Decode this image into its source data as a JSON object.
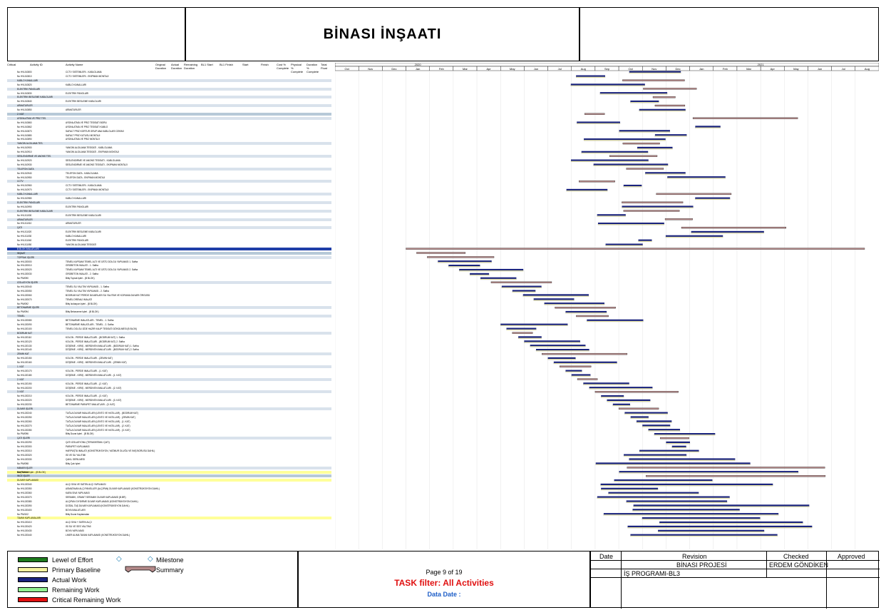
{
  "header": {
    "title": "BİNASI İNŞAATI"
  },
  "columns": {
    "col1": "Critical",
    "col2": "Activity ID",
    "col3": "Activity Name",
    "col4": "Original Duration",
    "col5": "Actual Duration",
    "col6": "Remaining Duration",
    "col7": "BL1 Start",
    "col8": "BL1 Finish",
    "col9": "Start",
    "col10": "Finish",
    "col11": "Cost % Complete",
    "col12": "Physical % Complete",
    "col13": "Duration % Complete",
    "col14": "Total Float"
  },
  "timeline": {
    "years": [
      "2020",
      "2021"
    ],
    "months": [
      "Oct",
      "Nov",
      "Dec",
      "Jan",
      "Feb",
      "Mar",
      "Apr",
      "May",
      "Jun",
      "Jul",
      "Aug",
      "Sep",
      "Oct",
      "Nov",
      "Dec",
      "Jan",
      "Feb",
      "Mar",
      "Apr",
      "May",
      "Jun",
      "Jul",
      "Aug"
    ]
  },
  "rows": [
    {
      "id": "No HVU10800",
      "name": "CCTV SISTEMLERI - KABLOLAMA",
      "kind": "task"
    },
    {
      "id": "No HVU10810",
      "name": "CCTV SISTEMLERI - EKIPMAN MONTAJI",
      "kind": "task"
    },
    {
      "id": "",
      "name": "KABLO KANALLARI",
      "kind": "g2"
    },
    {
      "id": "No HVU10820",
      "name": "KABLO KANALLARI",
      "kind": "task"
    },
    {
      "id": "",
      "name": "ELEKTRIK PANOLARI",
      "kind": "g2"
    },
    {
      "id": "No HVU10830",
      "name": "ELEKTRIK PANOLARI",
      "kind": "task"
    },
    {
      "id": "",
      "name": "ELEKTRIK BESLEME KABLOLARI",
      "kind": "g2"
    },
    {
      "id": "No HVU10840",
      "name": "ELEKTRIK BESLEME KABLOLARI",
      "kind": "task"
    },
    {
      "id": "",
      "name": "ARMATURLER",
      "kind": "g2"
    },
    {
      "id": "No HVU10850",
      "name": "ARMATURLER",
      "kind": "task"
    },
    {
      "id": "",
      "name": "2. KAT",
      "kind": "g1"
    },
    {
      "id": "",
      "name": "AYDINLATMA VE PRIZ TES.",
      "kind": "g2"
    },
    {
      "id": "No HVU10860",
      "name": "AYDINLATMA VE PRIZ TESISATI BORU",
      "kind": "task"
    },
    {
      "id": "No HVU10862",
      "name": "AYDINLATMA VE PRIZ TESISATI KABLO",
      "kind": "task"
    },
    {
      "id": "No HVU10870",
      "name": "SAFALT PRIZ KORTUR GRUP ANA KABLOLARI CEKIMI",
      "kind": "task"
    },
    {
      "id": "No HVU10880",
      "name": "SAFALT PRIZ KUTUSU MONTAJI",
      "kind": "task"
    },
    {
      "id": "No HVU10890",
      "name": "AYDINLATMA VE PRIZ MONTAJI",
      "kind": "task"
    },
    {
      "id": "",
      "name": "YANGIN ALGILAMA TES.",
      "kind": "g2"
    },
    {
      "id": "No HVU10900",
      "name": "YANGIN ALGILAMA TESISATI - KABLOLAMA",
      "kind": "task"
    },
    {
      "id": "No HVU10910",
      "name": "YANGIN ALGILAMA TESISATI - EKIPMAN MONTAJI",
      "kind": "task"
    },
    {
      "id": "",
      "name": "SESLENDIRME VE ANONS TES.",
      "kind": "g2"
    },
    {
      "id": "No HVU10920",
      "name": "SESLENDIRME VE ANONS TESISATI - KABLOLAMA",
      "kind": "task"
    },
    {
      "id": "No HVU10930",
      "name": "SESLENDIRME VE ANONS TESISATI - EKIPMAN MONTAJI",
      "kind": "task"
    },
    {
      "id": "",
      "name": "TELEFON DATA",
      "kind": "g2"
    },
    {
      "id": "No HVU10940",
      "name": "TELEFON DATA - KABLOLAMA",
      "kind": "task"
    },
    {
      "id": "No HVU10950",
      "name": "TELEFON DATA - EKIPMAN MONTAJI",
      "kind": "task"
    },
    {
      "id": "",
      "name": "CCTV",
      "kind": "g2"
    },
    {
      "id": "No HVU10960",
      "name": "CCTV SISTEMLERI - KABLOLAMA",
      "kind": "task"
    },
    {
      "id": "No HVU10970",
      "name": "CCTV SISTEMLERI - EKIPMAN MONTAJI",
      "kind": "task"
    },
    {
      "id": "",
      "name": "KABLO KANALLARI",
      "kind": "g2"
    },
    {
      "id": "No HVU10980",
      "name": "KABLO KANALLARI",
      "kind": "task"
    },
    {
      "id": "",
      "name": "ELEKTRIK PANOLARI",
      "kind": "g2"
    },
    {
      "id": "No HVU10990",
      "name": "ELEKTRIK PANOLARI",
      "kind": "task"
    },
    {
      "id": "",
      "name": "ELEKTRIK BESLEME KABLOLARI",
      "kind": "g2"
    },
    {
      "id": "No HVU11000",
      "name": "ELEKTRIK BESLEME KABLOLARI",
      "kind": "task"
    },
    {
      "id": "",
      "name": "ARMATURLER",
      "kind": "g2"
    },
    {
      "id": "No HVU11010",
      "name": "ARMATURLER",
      "kind": "task"
    },
    {
      "id": "",
      "name": "ÇATI",
      "kind": "g2"
    },
    {
      "id": "No HVU11020",
      "name": "ELEKTRIK BESLEME KABLOLARI",
      "kind": "task"
    },
    {
      "id": "No HVU11030",
      "name": "KABLO KANALLARI",
      "kind": "task"
    },
    {
      "id": "No HVU11040",
      "name": "ELEKTRIK PANOLARI",
      "kind": "task"
    },
    {
      "id": "No HVU11050",
      "name": "YANGIN ALGILAMA TESISATI",
      "kind": "task"
    },
    {
      "id": "",
      "name": "B BLOK İMALATLARI",
      "kind": "wbs"
    },
    {
      "id": "",
      "name": "İNŞAAT",
      "kind": "g1"
    },
    {
      "id": "",
      "name": "TOPRAK İŞLERİ",
      "kind": "g2"
    },
    {
      "id": "No HVU20000",
      "name": "TEMEL KAPSAMI TEMEL ALTI VE ÜSTÜ DOLGU YAPILMASI 1. Safha",
      "kind": "task"
    },
    {
      "id": "No HVU20010",
      "name": "GROBETON İMALATI - 1. Safha",
      "kind": "task"
    },
    {
      "id": "No HVU20020",
      "name": "TEMEL KAPSAMI TEMEL ALTI VE ÜSTÜ DOLGU YAPILMASI 2. Safha",
      "kind": "task"
    },
    {
      "id": "No HVU20030",
      "name": "GROBETON İMALATI - 2. Safha",
      "kind": "task"
    },
    {
      "id": "No PM/090",
      "name": "Bitiş Toprak İşleri - (B BLOK)",
      "kind": "task"
    },
    {
      "id": "",
      "name": "İZOLASYON İŞLERİ",
      "kind": "g2"
    },
    {
      "id": "No HVU20040",
      "name": "TEMEL SU YALITIM YAPILMASI - 1. Safha",
      "kind": "task"
    },
    {
      "id": "No HVU20050",
      "name": "TEMEL SU YALITIM YAPILMASI - 2. Safha",
      "kind": "task"
    },
    {
      "id": "No HVU20060",
      "name": "BODRUM KAT PERDE DUVARLARI SU YALITIMI VE KORUMA DUVARI ÖRGÜSÜ",
      "kind": "task"
    },
    {
      "id": "No HVU20070",
      "name": "TEMEL DRENAJ İMALATI",
      "kind": "task"
    },
    {
      "id": "No PM/092",
      "name": "Bitiş İzolasyon İşleri - (B BLOK)",
      "kind": "task"
    },
    {
      "id": "",
      "name": "BETONARME İŞLERİ",
      "kind": "g2"
    },
    {
      "id": "No PM/094",
      "name": "Bitiş Betonarme İşleri - (B BLOK)",
      "kind": "task"
    },
    {
      "id": "",
      "name": "TEMEL",
      "kind": "g2"
    },
    {
      "id": "No HVU20080",
      "name": "BETONARME İMALATLARI - TEMEL - 1. Safha",
      "kind": "task"
    },
    {
      "id": "No HVU20090",
      "name": "BETONARME İMALATLARI - TEMEL - 2. Safha",
      "kind": "task"
    },
    {
      "id": "No HVU20100",
      "name": "TEMEL DOLGU İZDE HAZIR KALIP TESİSATI DÖKÜLMESİ (B BLOK)",
      "kind": "task"
    },
    {
      "id": "",
      "name": "BODRUM KAT",
      "kind": "g2"
    },
    {
      "id": "No HVU20110",
      "name": "KOLON - PERDE İMALATLARI - (BODRUM KAT) 1. Safha",
      "kind": "task"
    },
    {
      "id": "No HVU20120",
      "name": "KOLON - PERDE İMALATLARI - (BODRUM KAT) 2. Safha",
      "kind": "task"
    },
    {
      "id": "No HVU20130",
      "name": "DÖŞEME - KİRİŞ - MERDİVEN İMALATLARI - (BODRUM KAT) 1. Safha",
      "kind": "task"
    },
    {
      "id": "No HVU20140",
      "name": "DÖŞEME - KİRİŞ - MERDİVEN İMALATLARI - (BODRUM KAT) 2. Safha",
      "kind": "task"
    },
    {
      "id": "",
      "name": "ZEMİN KAT",
      "kind": "g2"
    },
    {
      "id": "No HVU20150",
      "name": "KOLON - PERDE İMALATLARI - (ZEMİN KAT)",
      "kind": "task"
    },
    {
      "id": "No HVU20160",
      "name": "DÖŞEME - KİRİŞ - MERDİVEN İMALATLARI - (ZEMİN KAT)",
      "kind": "task"
    },
    {
      "id": "",
      "name": "1. KAT",
      "kind": "g2"
    },
    {
      "id": "No HVU20170",
      "name": "KOLON - PERDE İMALATLARI - (1. KAT)",
      "kind": "task"
    },
    {
      "id": "No HVU20180",
      "name": "DÖŞEME - KİRİŞ - MERDİVEN İMALATLARI - (1. KAT)",
      "kind": "task"
    },
    {
      "id": "",
      "name": "2. KAT",
      "kind": "g2"
    },
    {
      "id": "No HVU20190",
      "name": "KOLON - PERDE İMALATLARI - (2. KAT)",
      "kind": "task"
    },
    {
      "id": "No HVU20200",
      "name": "DÖŞEME - KİRİŞ - MERDİVEN İMALATLARI - (2. KAT)",
      "kind": "task"
    },
    {
      "id": "",
      "name": "3. KAT",
      "kind": "g2"
    },
    {
      "id": "No HVU20210",
      "name": "KOLON - PERDE İMALATLARI - (3. KAT)",
      "kind": "task"
    },
    {
      "id": "No HVU20220",
      "name": "DÖŞEME - KİRİŞ - MERDİVEN İMALATLARI - (3. KAT)",
      "kind": "task"
    },
    {
      "id": "No HVU20230",
      "name": "BETONARME PARAPET İMALATLARI - (3. KAT)",
      "kind": "task"
    },
    {
      "id": "",
      "name": "DUVAR İŞLERİ",
      "kind": "g2"
    },
    {
      "id": "No HVU20240",
      "name": "TUĞLA DUVAR İMALATLARI (LENTO VE HATILLAR) - (BODRUM KAT)",
      "kind": "task"
    },
    {
      "id": "No HVU20250",
      "name": "TUĞLA DUVAR İMALATLARI (LENTO VE HATILLAR) - (ZEMİN KAT)",
      "kind": "task"
    },
    {
      "id": "No HVU20260",
      "name": "TUĞLA DUVAR İMALATLARI (LENTO VE HATILLAR) - (1. KAT)",
      "kind": "task"
    },
    {
      "id": "No HVU20270",
      "name": "TUĞLA DUVAR İMALATLARI (LENTO VE HATILLAR) - (2. KAT)",
      "kind": "task"
    },
    {
      "id": "No HVU20280",
      "name": "TUĞLA DUVAR İMALATLARI (LENTO VE HATILLAR) - (3. KAT)",
      "kind": "task"
    },
    {
      "id": "No PM/096",
      "name": "Bitiş Duvar İşleri - (B BLOK)",
      "kind": "task"
    },
    {
      "id": "",
      "name": "ÇATI İŞLERİ",
      "kind": "g2"
    },
    {
      "id": "No HVU20290",
      "name": "ÇATI İZOLASYONU (TERAS/EĞİMLİ ÇATI)",
      "kind": "task"
    },
    {
      "id": "No HVU20300",
      "name": "PARAPET KAPLAMASI",
      "kind": "task"
    },
    {
      "id": "No HVU20310",
      "name": "HARPUŞTA İMALATI (KONSTRÜKSİYON, YAĞMUR OLUĞU VE İNİŞ BORUSU DAHİL)",
      "kind": "task"
    },
    {
      "id": "No HVU20320",
      "name": "ISI VE SU YALITIMI",
      "kind": "task"
    },
    {
      "id": "No HVU20330",
      "name": "ÇAKIL SERİLMESİ",
      "kind": "task"
    },
    {
      "id": "No PM/098",
      "name": "Bitiş Çatı İşleri",
      "kind": "task"
    },
    {
      "id": "",
      "name": "MİMARİ İŞLER",
      "kind": "g2"
    },
    {
      "id": "No PM/100",
      "name": "Bitiş Mimari İşler - (B BLOK)",
      "kind": "yel"
    },
    {
      "id": "",
      "name": "İNCE İŞLER",
      "kind": "g1"
    },
    {
      "id": "",
      "name": "DUVAR KAPLAMASI",
      "kind": "yel"
    },
    {
      "id": "No HVU20340",
      "name": "ALÇI SIVA VE SATEN ALÇI YAPILMASI",
      "kind": "task"
    },
    {
      "id": "No HVU20350",
      "name": "ASMATAVAN ALÇI PANELLER (ALÇIPAN) DUVAR KAPLAMASI (KONSTRÜKSİYON DAHİL)",
      "kind": "task"
    },
    {
      "id": "No HVU20360",
      "name": "KARA SIVA YAPILMASI",
      "kind": "task"
    },
    {
      "id": "No HVU20370",
      "name": "SERAMİK, GRANİT SERAMİK DUVAR KAPLAMASI (B.BR)",
      "kind": "task"
    },
    {
      "id": "No HVU20380",
      "name": "ALÇIPAN GİYDİRME DUVAR KAPLAMASI (KONSTRÜKSİYON DAHİL)",
      "kind": "task"
    },
    {
      "id": "No HVU20390",
      "name": "DOĞAL TAŞ DUVAR KAPLAMASI (KONSTRÜKSİYON DAHİL)",
      "kind": "task"
    },
    {
      "id": "No HVU20400",
      "name": "BOYA İMALATLARI",
      "kind": "task"
    },
    {
      "id": "No PM/102",
      "name": "Bitiş Duvar Kaplamaları",
      "kind": "task"
    },
    {
      "id": "",
      "name": "TAVAN KAPLAMALARI",
      "kind": "yel"
    },
    {
      "id": "No HVU20410",
      "name": "ALÇI SIVA + SATEN ALÇI",
      "kind": "task"
    },
    {
      "id": "No HVU20420",
      "name": "ISI SU VE SES YALITIMI",
      "kind": "task"
    },
    {
      "id": "No HVU20430",
      "name": "BOYA YAPILMASI",
      "kind": "task"
    },
    {
      "id": "No HVU20440",
      "name": "LİNER ALIMA TAVAN KAPLAMASI (KONSTRÜKSİYON DAHİL)",
      "kind": "task"
    }
  ],
  "legend": {
    "loe": "Lewel of Effort",
    "baseline": "Primary Baseline",
    "actual": "Actual Work",
    "remaining": "Remaining Work",
    "critical": "Critical Remaining Work",
    "milestone": "Milestone",
    "summary": "Summary"
  },
  "footer": {
    "page": "Page 9 of 19",
    "filter": "TASK filter: All Activities",
    "data_date": "Data Date :"
  },
  "revision": {
    "h_date": "Date",
    "h_revision": "Revision",
    "h_checked": "Checked",
    "h_approved": "Approved",
    "project": "BİNASI PROJESİ",
    "checker": "ERDEM GÖNDİKEN",
    "program": "İŞ PROGRAMI-BL3"
  },
  "colors": {
    "actual": "#1a237e",
    "baseline": "#f7f3a0",
    "summary": "#b58a8a",
    "loe": "#1e7b1e",
    "remaining": "#90ee90",
    "critical": "#e01010",
    "wbs": "#1f3ea8"
  }
}
